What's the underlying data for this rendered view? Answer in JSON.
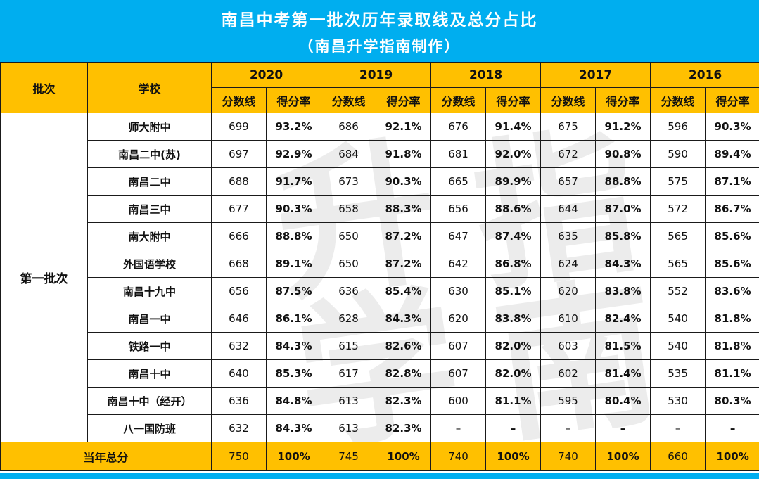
{
  "chart_data": {
    "type": "table",
    "title": "南昌中考第一批次历年录取线及总分占比",
    "subtitle": "（南昌升学指南制作）",
    "header": {
      "batch": "批次",
      "school": "学校",
      "years": [
        "2020",
        "2019",
        "2018",
        "2017",
        "2016"
      ],
      "score_label": "分数线",
      "rate_label": "得分率"
    },
    "batch_label": "第一批次",
    "rows": [
      {
        "school": "师大附中",
        "values": [
          "699",
          "93.2%",
          "686",
          "92.1%",
          "676",
          "91.4%",
          "675",
          "91.2%",
          "596",
          "90.3%"
        ]
      },
      {
        "school": "南昌二中(苏)",
        "values": [
          "697",
          "92.9%",
          "684",
          "91.8%",
          "681",
          "92.0%",
          "672",
          "90.8%",
          "590",
          "89.4%"
        ]
      },
      {
        "school": "南昌二中",
        "values": [
          "688",
          "91.7%",
          "673",
          "90.3%",
          "665",
          "89.9%",
          "657",
          "88.8%",
          "575",
          "87.1%"
        ]
      },
      {
        "school": "南昌三中",
        "values": [
          "677",
          "90.3%",
          "658",
          "88.3%",
          "656",
          "88.6%",
          "644",
          "87.0%",
          "572",
          "86.7%"
        ]
      },
      {
        "school": "南大附中",
        "values": [
          "666",
          "88.8%",
          "650",
          "87.2%",
          "647",
          "87.4%",
          "635",
          "85.8%",
          "565",
          "85.6%"
        ]
      },
      {
        "school": "外国语学校",
        "values": [
          "668",
          "89.1%",
          "650",
          "87.2%",
          "642",
          "86.8%",
          "624",
          "84.3%",
          "565",
          "85.6%"
        ]
      },
      {
        "school": "南昌十九中",
        "values": [
          "656",
          "87.5%",
          "636",
          "85.4%",
          "630",
          "85.1%",
          "620",
          "83.8%",
          "552",
          "83.6%"
        ]
      },
      {
        "school": "南昌一中",
        "values": [
          "646",
          "86.1%",
          "628",
          "84.3%",
          "620",
          "83.8%",
          "610",
          "82.4%",
          "540",
          "81.8%"
        ]
      },
      {
        "school": "铁路一中",
        "values": [
          "632",
          "84.3%",
          "615",
          "82.6%",
          "607",
          "82.0%",
          "603",
          "81.5%",
          "540",
          "81.8%"
        ]
      },
      {
        "school": "南昌十中",
        "values": [
          "640",
          "85.3%",
          "617",
          "82.8%",
          "607",
          "82.0%",
          "602",
          "81.4%",
          "535",
          "81.1%"
        ]
      },
      {
        "school": "南昌十中（经开）",
        "values": [
          "636",
          "84.8%",
          "613",
          "82.3%",
          "600",
          "81.1%",
          "595",
          "80.4%",
          "530",
          "80.3%"
        ]
      },
      {
        "school": "八一国防班",
        "values": [
          "632",
          "84.3%",
          "613",
          "82.3%",
          "–",
          "–",
          "–",
          "–",
          "–",
          "–"
        ]
      }
    ],
    "total_row": {
      "label": "当年总分",
      "values": [
        "750",
        "100%",
        "745",
        "100%",
        "740",
        "100%",
        "740",
        "100%",
        "660",
        "100%"
      ]
    }
  },
  "watermark": {
    "left_column": "升学",
    "right_column": "指南"
  },
  "colors": {
    "banner_blue": "#00AEEF",
    "header_yellow": "#FFC000",
    "border_black": "#1A1A1A",
    "watermark_gray": "#ECECEC"
  }
}
